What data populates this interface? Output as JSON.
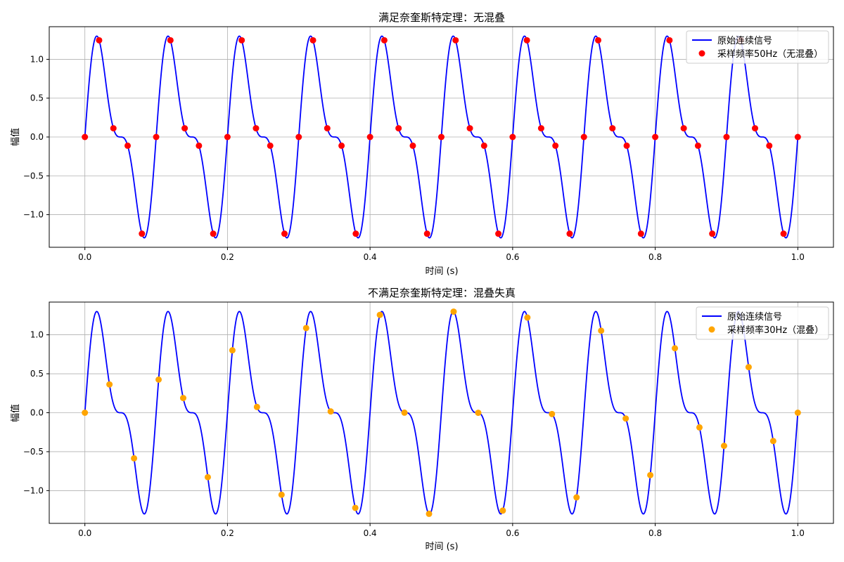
{
  "chart_data": [
    {
      "type": "line",
      "title": "满足奈奎斯特定理：无混叠",
      "xlabel": "时间 (s)",
      "ylabel": "幅值",
      "xlim": [
        -0.05,
        1.05
      ],
      "ylim": [
        -1.42,
        1.42
      ],
      "xticks": [
        0.0,
        0.2,
        0.4,
        0.6,
        0.8,
        1.0
      ],
      "xtick_labels": [
        "0.0",
        "0.2",
        "0.4",
        "0.6",
        "0.8",
        "1.0"
      ],
      "yticks": [
        -1.0,
        -0.5,
        0.0,
        0.5,
        1.0
      ],
      "ytick_labels": [
        "−1.0",
        "−0.5",
        "0.0",
        "0.5",
        "1.0"
      ],
      "grid": true,
      "legend_position": "top-right",
      "series": [
        {
          "name": "原始连续信号",
          "kind": "line",
          "color": "#0000ff",
          "function": "sin(2π·10·t) + 0.5·sin(2π·20·t)",
          "t_range": [
            0,
            1
          ]
        },
        {
          "name": "采样频率50Hz（无混叠）",
          "kind": "scatter",
          "color": "#ff0000",
          "sample_rate_hz": 50,
          "samples": 51
        }
      ]
    },
    {
      "type": "line",
      "title": "不满足奈奎斯特定理：混叠失真",
      "xlabel": "时间 (s)",
      "ylabel": "幅值",
      "xlim": [
        -0.05,
        1.05
      ],
      "ylim": [
        -1.42,
        1.42
      ],
      "xticks": [
        0.0,
        0.2,
        0.4,
        0.6,
        0.8,
        1.0
      ],
      "xtick_labels": [
        "0.0",
        "0.2",
        "0.4",
        "0.6",
        "0.8",
        "1.0"
      ],
      "yticks": [
        -1.0,
        -0.5,
        0.0,
        0.5,
        1.0
      ],
      "ytick_labels": [
        "−1.0",
        "−0.5",
        "0.0",
        "0.5",
        "1.0"
      ],
      "grid": true,
      "legend_position": "top-right",
      "series": [
        {
          "name": "原始连续信号",
          "kind": "line",
          "color": "#0000ff",
          "function": "sin(2π·10·t) + 0.5·sin(2π·20·t)",
          "t_range": [
            0,
            1
          ]
        },
        {
          "name": "采样频率30Hz（混叠）",
          "kind": "scatter",
          "color": "#ffa500",
          "sample_rate_hz": 30,
          "samples": 30
        }
      ]
    }
  ]
}
